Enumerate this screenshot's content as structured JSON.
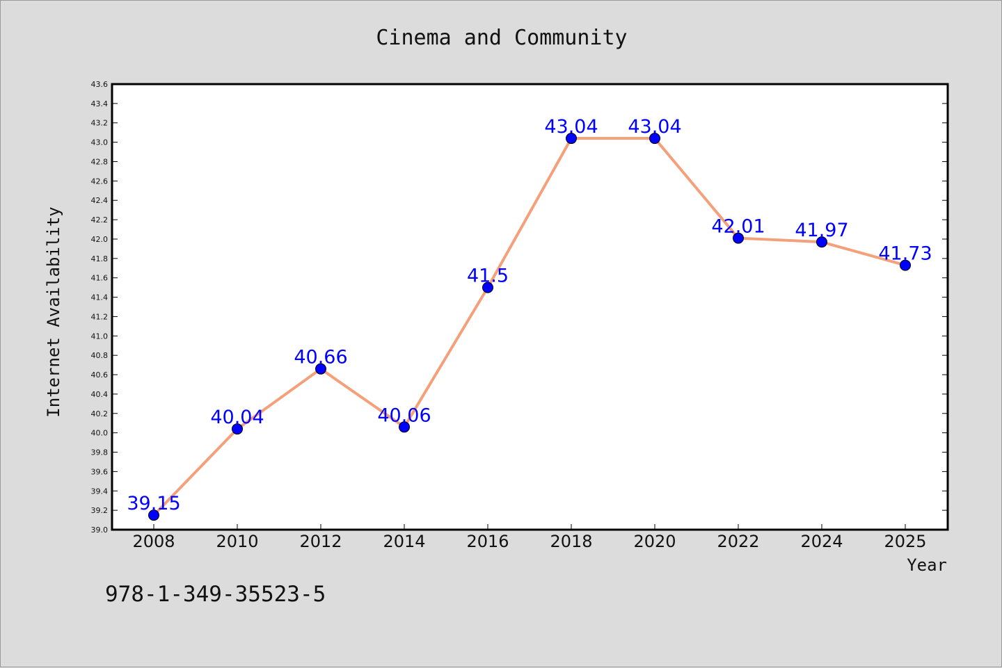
{
  "chart_data": {
    "type": "line",
    "title": "Cinema and Community",
    "xlabel": "Year",
    "ylabel": "Internet Availability",
    "x": [
      "2008",
      "2010",
      "2012",
      "2014",
      "2016",
      "2018",
      "2020",
      "2022",
      "2024",
      "2025"
    ],
    "series": [
      {
        "values": [
          39.15,
          40.04,
          40.66,
          40.06,
          41.5,
          43.04,
          43.04,
          42.01,
          41.97,
          41.73
        ],
        "data_labels": [
          "39.15",
          "40.04",
          "40.66",
          "40.06",
          "41.5",
          "43.04",
          "43.04",
          "42.01",
          "41.97",
          "41.73"
        ],
        "line_color": "#f4a07a",
        "marker_color": "#0000ff"
      }
    ],
    "ylim": [
      39.0,
      43.6
    ],
    "yticks": [
      "39.0",
      "39.2",
      "39.4",
      "39.6",
      "39.8",
      "40.0",
      "40.2",
      "40.4",
      "40.6",
      "40.8",
      "41.0",
      "41.2",
      "41.4",
      "41.6",
      "41.8",
      "42.0",
      "42.2",
      "42.4",
      "42.6",
      "42.8",
      "43.0",
      "43.2",
      "43.4",
      "43.6"
    ],
    "grid": false,
    "legend": "none"
  },
  "footer": {
    "code": "978-1-349-35523-5"
  },
  "colors": {
    "background": "#dcdcdc",
    "plot_background": "#ffffff",
    "line": "#f4a07a",
    "marker": "#0000ff",
    "data_label": "#0000ff"
  }
}
